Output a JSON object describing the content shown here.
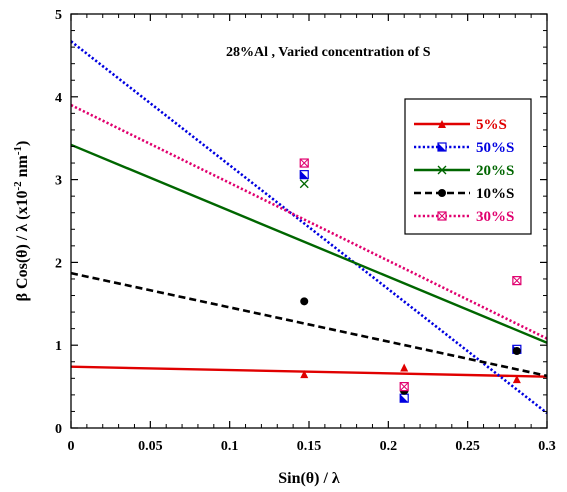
{
  "chart_data": {
    "type": "scatter",
    "annotation": "28%Al , Varied concentration of S",
    "xlabel": "Sin(θ) / λ",
    "ylabel_main": "β Cos(θ) / λ  (x10",
    "ylabel_exp": "-2",
    "ylabel_unit": " nm",
    "ylabel_unit_exp": "-1",
    "ylabel_close": ")",
    "xlim": [
      0,
      0.3
    ],
    "ylim": [
      0,
      5
    ],
    "xticks": [
      "0",
      "0.05",
      "0.1",
      "0.15",
      "0.2",
      "0.25",
      "0.3"
    ],
    "yticks": [
      "0",
      "1",
      "2",
      "3",
      "4",
      "5"
    ],
    "legend_position": "right",
    "series": [
      {
        "name": "5%S",
        "color": "#e00000",
        "dash": "solid",
        "marker": "triangle",
        "points": [
          [
            0.147,
            0.65
          ],
          [
            0.21,
            0.73
          ],
          [
            0.281,
            0.59
          ]
        ],
        "fit": [
          [
            0,
            0.74
          ],
          [
            0.3,
            0.62
          ]
        ]
      },
      {
        "name": "50%S",
        "color": "#0000e0",
        "dash": "dotted",
        "marker": "half-square",
        "points": [
          [
            0.147,
            3.06
          ],
          [
            0.21,
            0.36
          ],
          [
            0.281,
            0.95
          ]
        ],
        "fit": [
          [
            0,
            4.67
          ],
          [
            0.3,
            0.18
          ]
        ]
      },
      {
        "name": "20%S",
        "color": "#006600",
        "dash": "solid",
        "marker": "x",
        "points": [
          [
            0.147,
            2.95
          ],
          [
            0.21,
            0.48
          ],
          [
            0.281,
            1.78
          ]
        ],
        "fit": [
          [
            0,
            3.42
          ],
          [
            0.3,
            1.03
          ]
        ]
      },
      {
        "name": "10%S",
        "color": "#000000",
        "dash": "dashed",
        "marker": "circle",
        "points": [
          [
            0.147,
            1.53
          ],
          [
            0.21,
            0.45
          ],
          [
            0.281,
            0.93
          ]
        ],
        "fit": [
          [
            0,
            1.87
          ],
          [
            0.3,
            0.63
          ]
        ]
      },
      {
        "name": "30%S",
        "color": "#e0006e",
        "dash": "dotted",
        "marker": "boxed-x",
        "points": [
          [
            0.147,
            3.2
          ],
          [
            0.21,
            0.5
          ],
          [
            0.281,
            1.78
          ]
        ],
        "fit": [
          [
            0,
            3.9
          ],
          [
            0.3,
            1.08
          ]
        ]
      }
    ]
  }
}
